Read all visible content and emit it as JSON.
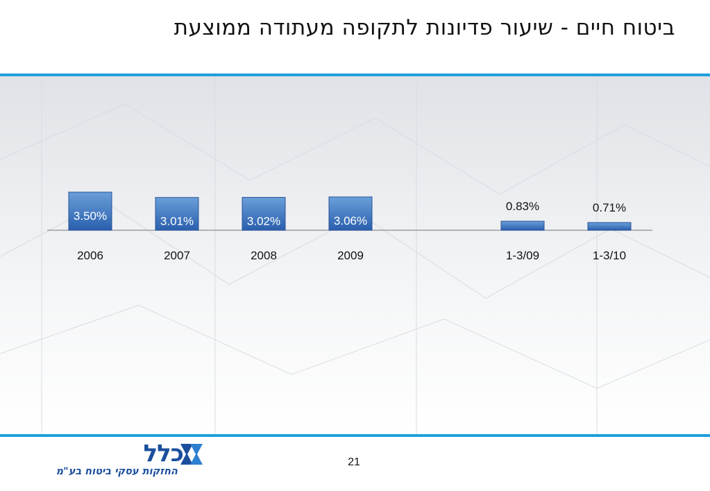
{
  "slide": {
    "title": "ביטוח חיים - שיעור פדיונות לתקופה מעתודה ממוצעת",
    "page_number": "21"
  },
  "logo": {
    "name": "כלל",
    "subtitle": "החזקות עסקי ביטוח בע\"מ",
    "color": "#1b4f9c"
  },
  "colors": {
    "accent_rule": "#1e9fdc",
    "bar_top": "#6a9fd8",
    "bar_bottom": "#2a5fae",
    "inside_label": "#ffffff",
    "outside_label": "#111111"
  },
  "chart_data": {
    "type": "bar",
    "title": "",
    "xlabel": "",
    "ylabel": "",
    "categories": [
      "2006",
      "2007",
      "2008",
      "2009",
      "1-3/09",
      "1-3/10"
    ],
    "values": [
      3.5,
      3.01,
      3.02,
      3.06,
      0.83,
      0.71
    ],
    "value_labels": [
      "3.50%",
      "3.01%",
      "3.02%",
      "3.06%",
      "0.83%",
      "0.71%"
    ],
    "unit": "%",
    "grid": false,
    "legend": "none"
  }
}
